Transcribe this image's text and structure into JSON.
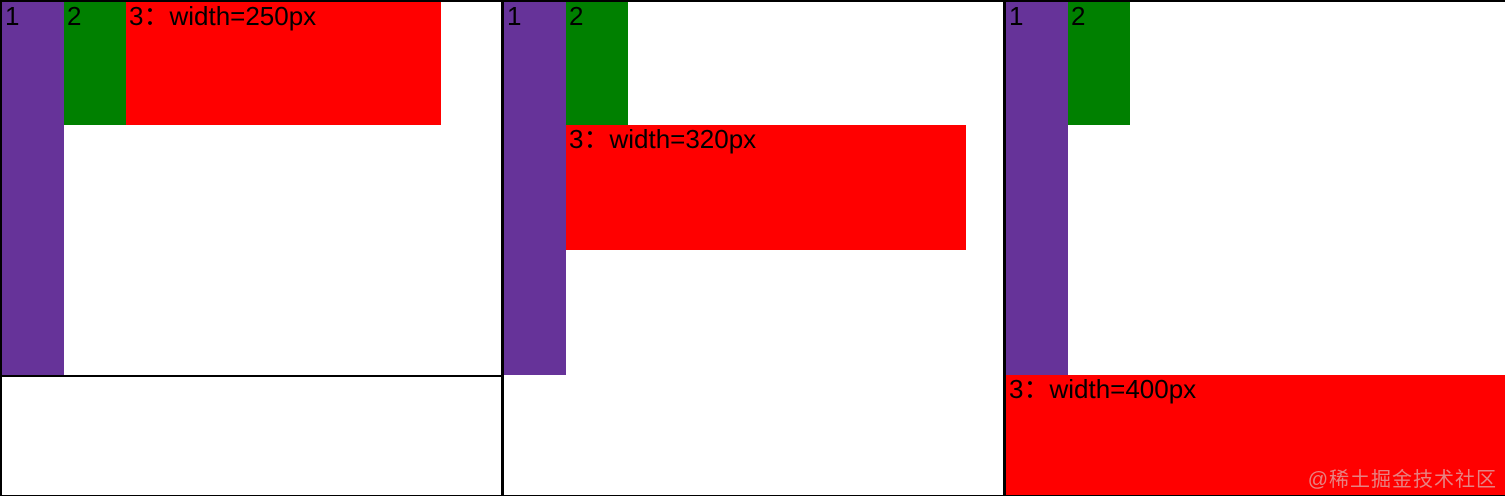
{
  "colors": {
    "background": "#ffffff",
    "border_black": "#000000",
    "label_text": "#000000",
    "box1_purple": "#663399",
    "box2_green": "#008000",
    "box3_red": "#ff0000",
    "watermark": "rgba(215,215,215,0.6)"
  },
  "panels": [
    {
      "box1_label": "1",
      "box2_label": "2",
      "box3_label": "3：width=250px"
    },
    {
      "box1_label": "1",
      "box2_label": "2",
      "box3_label": "3：width=320px"
    },
    {
      "box1_label": "1",
      "box2_label": "2",
      "box3_label": "3：width=400px"
    }
  ],
  "watermark": {
    "text": "@稀土掘金技术社区"
  }
}
